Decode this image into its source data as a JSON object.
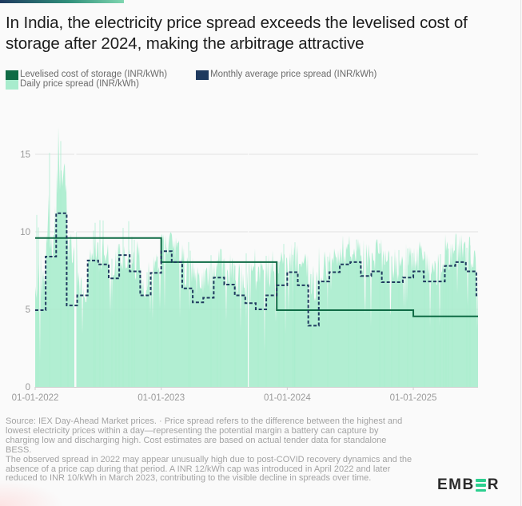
{
  "title": "In India, the electricity price spread exceeds the levelised cost of storage after 2024, making the arbitrage attractive",
  "legend": {
    "items": [
      {
        "label": "Levelised cost of storage (INR/kWh)",
        "color": "#0f6b45"
      },
      {
        "label": "Monthly average price spread (INR/kWh)",
        "color": "#1f3a5f"
      },
      {
        "label": "Daily price spread (INR/kWh)",
        "color": "#a8eccd"
      }
    ]
  },
  "footnote": {
    "line1": "Source: IEX Day-Ahead Market prices. · Price spread refers to the difference between the highest and lowest electricity prices within a day—representing the potential margin a battery can capture by charging low and discharging high. Cost estimates are based on actual tender data for standalone BESS.",
    "line2": "The observed spread in 2022 may appear unusually high due to post-COVID recovery dynamics and the absence of a price cap during that period. A INR 12/kWh cap was introduced in April 2022 and later reduced to INR 10/kWh in March 2023, contributing to the visible decline in spreads over time."
  },
  "logo": {
    "text_before": "EMB",
    "text_after": "R",
    "accent": "#2ccf8f"
  },
  "chart_data": {
    "type": "line",
    "title": "In India, the electricity price spread exceeds the levelised cost of storage after 2024, making the arbitrage attractive",
    "xlabel": "",
    "ylabel": "",
    "ylim": [
      0,
      17.5
    ],
    "yticks": [
      0,
      5,
      10,
      15
    ],
    "xticks": [
      "01-01-2022",
      "01-01-2023",
      "01-01-2024",
      "01-01-2025"
    ],
    "x_range_months": [
      0,
      18.5
    ],
    "grid": true,
    "legend_position": "top-left",
    "colors": {
      "lcos": "#0f6b45",
      "monthly": "#1f3a5f",
      "daily": "#a8eccd",
      "grid": "#e2e2e2",
      "axis": "#cfcfcf"
    },
    "series": [
      {
        "name": "Levelised cost of storage (INR/kWh)",
        "style": "step-solid",
        "segments": [
          {
            "from": "2022-01",
            "to": "2023-01",
            "value": 9.6
          },
          {
            "from": "2023-01",
            "to": "2023-12",
            "value": 8.05
          },
          {
            "from": "2023-12",
            "to": "2025-01",
            "value": 4.95
          },
          {
            "from": "2025-01",
            "to": "2025-07",
            "value": 4.55
          }
        ]
      },
      {
        "name": "Monthly average price spread (INR/kWh)",
        "style": "step-dashed",
        "months": [
          "2022-01",
          "2022-02",
          "2022-03",
          "2022-04",
          "2022-05",
          "2022-06",
          "2022-07",
          "2022-08",
          "2022-09",
          "2022-10",
          "2022-11",
          "2022-12",
          "2023-01",
          "2023-02",
          "2023-03",
          "2023-04",
          "2023-05",
          "2023-06",
          "2023-07",
          "2023-08",
          "2023-09",
          "2023-10",
          "2023-11",
          "2023-12",
          "2024-01",
          "2024-02",
          "2024-03",
          "2024-04",
          "2024-05",
          "2024-06",
          "2024-07",
          "2024-08",
          "2024-09",
          "2024-10",
          "2024-11",
          "2024-12",
          "2025-01",
          "2025-02",
          "2025-03",
          "2025-04",
          "2025-05",
          "2025-06",
          "2025-07"
        ],
        "values": [
          4.95,
          8.4,
          11.2,
          5.25,
          5.9,
          8.15,
          7.9,
          7.0,
          8.5,
          7.45,
          5.9,
          7.35,
          8.75,
          8.05,
          6.35,
          5.45,
          5.75,
          7.05,
          6.6,
          5.9,
          5.4,
          5.0,
          5.9,
          6.55,
          7.4,
          6.55,
          3.95,
          6.8,
          7.4,
          7.9,
          8.05,
          7.15,
          7.45,
          6.75,
          6.75,
          7.05,
          7.45,
          6.8,
          6.8,
          7.8,
          8.05,
          7.45,
          5.9
        ]
      },
      {
        "name": "Daily price spread (INR/kWh)",
        "style": "area",
        "note": "approximate monthly envelope of daily spread (typical level and peak)",
        "monthly_typical": [
          6.5,
          9.0,
          13.5,
          9.0,
          6.5,
          8.5,
          8.3,
          7.8,
          8.5,
          8.0,
          6.8,
          8.0,
          9.3,
          8.8,
          7.5,
          6.8,
          7.0,
          7.8,
          7.5,
          7.0,
          7.0,
          6.8,
          7.2,
          8.0,
          8.2,
          7.6,
          6.5,
          7.8,
          8.3,
          8.7,
          8.9,
          8.3,
          8.6,
          8.0,
          7.8,
          8.2,
          8.3,
          7.7,
          7.6,
          8.6,
          9.2,
          8.5,
          7.5
        ],
        "monthly_peak": [
          11.5,
          17.2,
          16.8,
          10.0,
          9.0,
          11.0,
          10.8,
          9.5,
          10.8,
          9.8,
          8.5,
          9.5,
          10.4,
          9.8,
          9.5,
          8.5,
          8.6,
          9.3,
          9.3,
          9.0,
          9.6,
          8.5,
          9.0,
          9.3,
          9.4,
          8.8,
          8.0,
          9.4,
          9.8,
          10.0,
          10.0,
          9.6,
          9.8,
          9.2,
          9.0,
          9.2,
          9.5,
          8.8,
          8.8,
          9.9,
          10.0,
          9.8,
          9.0
        ],
        "gaps": [
          "2022-05-mid",
          "2023-11-early"
        ]
      }
    ]
  }
}
